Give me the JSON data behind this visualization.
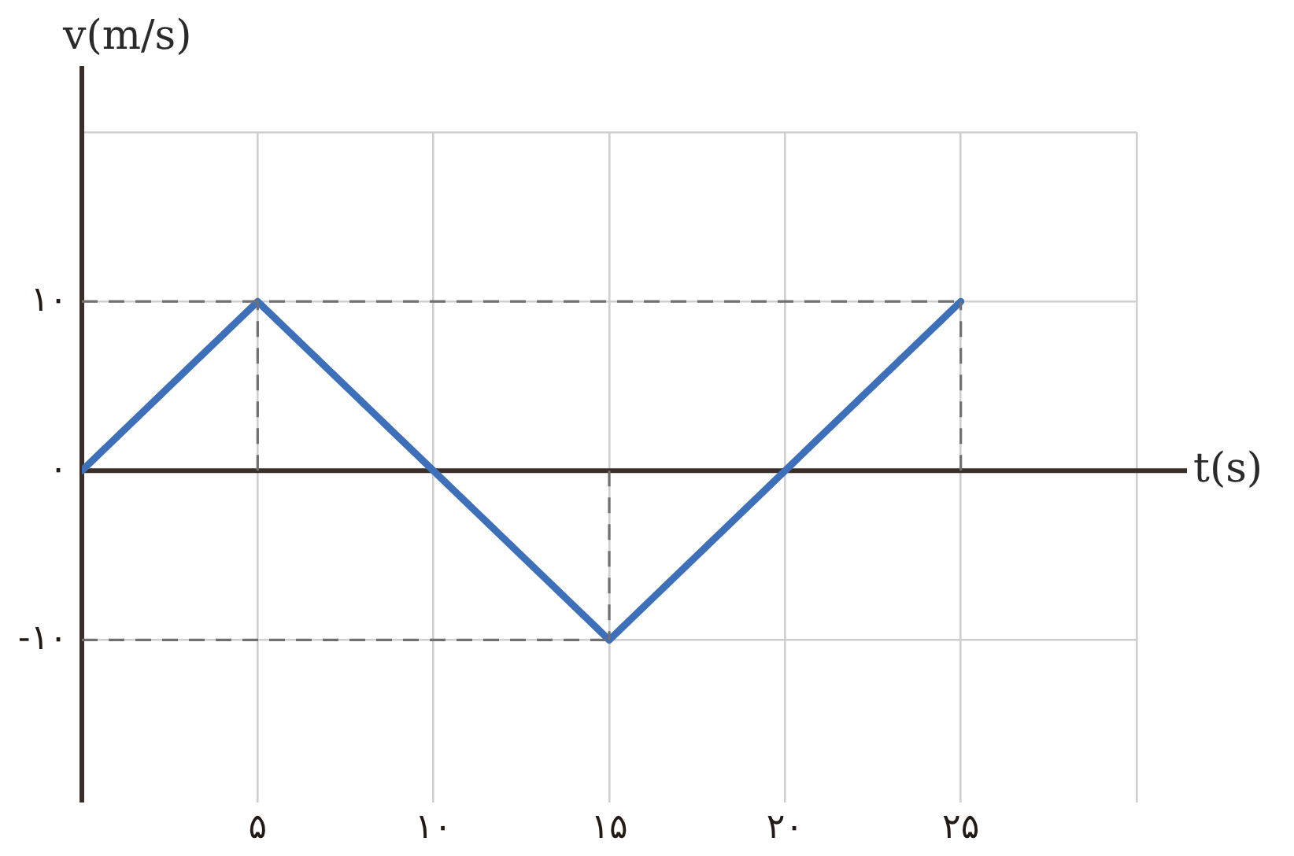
{
  "chart_data": {
    "type": "line",
    "xlabel": "t(s)",
    "ylabel": "v(m/s)",
    "series": [
      {
        "color": "#707070",
        "line_style": "dashed",
        "x": [
          0,
          25
        ],
        "values": [
          10,
          10
        ]
      },
      {
        "color": "#707070",
        "line_style": "dashed",
        "x": [
          0,
          15
        ],
        "values": [
          -10,
          -10
        ]
      },
      {
        "color": "#707070",
        "line_style": "dashed",
        "x": [
          5,
          5
        ],
        "values": [
          0,
          10
        ]
      },
      {
        "color": "#707070",
        "line_style": "dashed",
        "x": [
          15,
          15
        ],
        "values": [
          0,
          -10
        ]
      },
      {
        "color": "#707070",
        "line_style": "dashed",
        "x": [
          25,
          25
        ],
        "values": [
          0,
          10
        ]
      },
      {
        "color": "#3d70b8",
        "x": [
          0,
          5,
          15,
          25
        ],
        "values": [
          0,
          10,
          -10,
          10
        ]
      }
    ],
    "xlim": [
      0,
      30
    ],
    "ylim": [
      -19.6,
      20
    ],
    "xticks": [
      {
        "value": 0,
        "label": null
      },
      {
        "value": 5,
        "label": "۵"
      },
      {
        "value": 10,
        "label": "۱۰"
      },
      {
        "value": 15,
        "label": "۱۵"
      },
      {
        "value": 20,
        "label": "۲۰"
      },
      {
        "value": 25,
        "label": "۲۵"
      },
      {
        "value": 30,
        "label": null
      }
    ],
    "yticks": [
      {
        "value": -10,
        "label": "-۱۰"
      },
      {
        "value": 0,
        "label": "۰"
      },
      {
        "value": 10,
        "label": "۱۰"
      },
      {
        "value": 20,
        "label": null
      }
    ],
    "grid": true
  }
}
